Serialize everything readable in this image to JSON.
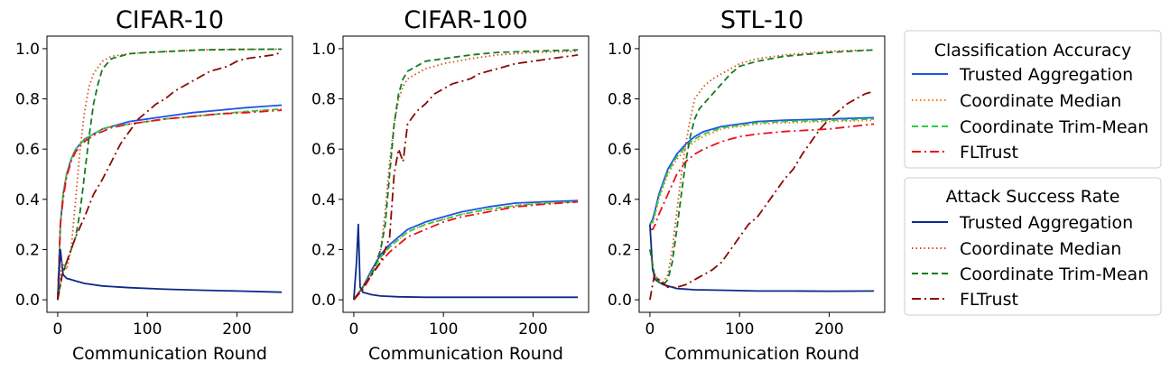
{
  "colors": {
    "acc_trusted": "#1f52e8",
    "acc_median": "#f07a10",
    "acc_trim": "#2ecc40",
    "acc_fltrust": "#e8101a",
    "asr_trusted": "#0c2a8a",
    "asr_median": "#d2541a",
    "asr_trim": "#127c20",
    "asr_fltrust": "#8b0a00"
  },
  "legend": {
    "acc_title": "Classification Accuracy",
    "asr_title": "Attack Success Rate",
    "acc_entries": [
      "Trusted Aggregation",
      "Coordinate Median",
      "Coordinate Trim-Mean",
      "FLTrust"
    ],
    "asr_entries": [
      "Trusted Aggregation",
      "Coordinate Median",
      "Coordinate Trim-Mean",
      "FLTrust"
    ],
    "placement": "right, outside plots"
  },
  "chart_data": [
    {
      "type": "line",
      "title": "CIFAR-10",
      "xlabel": "Communication Round",
      "ylabel": "",
      "xlim": [
        -12,
        262
      ],
      "ylim": [
        -0.05,
        1.05
      ],
      "xticks": [
        0,
        100,
        200
      ],
      "yticks": [
        "0.0",
        "0.2",
        "0.4",
        "0.6",
        "0.8",
        "1.0"
      ],
      "grid": false,
      "series": [
        {
          "key": "acc_trusted",
          "x": [
            0,
            3,
            6,
            10,
            15,
            20,
            30,
            40,
            50,
            60,
            80,
            100,
            120,
            150,
            180,
            210,
            230,
            250
          ],
          "y": [
            0.0,
            0.3,
            0.42,
            0.5,
            0.56,
            0.6,
            0.64,
            0.66,
            0.68,
            0.69,
            0.71,
            0.72,
            0.73,
            0.745,
            0.755,
            0.765,
            0.77,
            0.775
          ]
        },
        {
          "key": "acc_median",
          "x": [
            0,
            3,
            6,
            10,
            15,
            20,
            30,
            40,
            50,
            60,
            80,
            100,
            120,
            150,
            180,
            210,
            230,
            250
          ],
          "y": [
            0.0,
            0.3,
            0.42,
            0.5,
            0.56,
            0.6,
            0.64,
            0.66,
            0.68,
            0.69,
            0.7,
            0.71,
            0.72,
            0.73,
            0.74,
            0.75,
            0.755,
            0.76
          ]
        },
        {
          "key": "acc_trim",
          "x": [
            0,
            3,
            6,
            10,
            15,
            20,
            30,
            40,
            50,
            60,
            80,
            100,
            120,
            150,
            180,
            210,
            230,
            250
          ],
          "y": [
            0.0,
            0.3,
            0.42,
            0.5,
            0.56,
            0.6,
            0.64,
            0.66,
            0.68,
            0.69,
            0.7,
            0.71,
            0.72,
            0.73,
            0.74,
            0.75,
            0.755,
            0.76
          ]
        },
        {
          "key": "acc_fltrust",
          "x": [
            0,
            3,
            6,
            10,
            15,
            20,
            30,
            40,
            50,
            60,
            80,
            100,
            120,
            150,
            180,
            210,
            230,
            250
          ],
          "y": [
            0.0,
            0.3,
            0.4,
            0.49,
            0.55,
            0.59,
            0.63,
            0.655,
            0.67,
            0.685,
            0.7,
            0.71,
            0.72,
            0.73,
            0.74,
            0.745,
            0.75,
            0.755
          ]
        },
        {
          "key": "asr_trusted",
          "x": [
            0,
            3,
            6,
            10,
            15,
            20,
            30,
            50,
            80,
            120,
            160,
            200,
            250
          ],
          "y": [
            0.0,
            0.2,
            0.1,
            0.085,
            0.08,
            0.075,
            0.065,
            0.055,
            0.048,
            0.042,
            0.038,
            0.035,
            0.03
          ]
        },
        {
          "key": "asr_median",
          "x": [
            0,
            5,
            10,
            15,
            20,
            25,
            30,
            35,
            40,
            50,
            60,
            80,
            100,
            130,
            160,
            200,
            250
          ],
          "y": [
            0.0,
            0.15,
            0.12,
            0.2,
            0.4,
            0.6,
            0.75,
            0.85,
            0.9,
            0.95,
            0.97,
            0.98,
            0.985,
            0.99,
            0.995,
            0.997,
            0.998
          ]
        },
        {
          "key": "asr_trim",
          "x": [
            0,
            5,
            10,
            15,
            20,
            25,
            30,
            35,
            40,
            45,
            50,
            60,
            80,
            100,
            130,
            160,
            200,
            250
          ],
          "y": [
            0.0,
            0.1,
            0.15,
            0.2,
            0.25,
            0.35,
            0.5,
            0.65,
            0.78,
            0.86,
            0.92,
            0.96,
            0.98,
            0.985,
            0.99,
            0.995,
            0.997,
            0.998
          ]
        },
        {
          "key": "asr_fltrust",
          "x": [
            0,
            5,
            10,
            20,
            30,
            40,
            50,
            60,
            70,
            80,
            90,
            100,
            110,
            120,
            130,
            140,
            150,
            160,
            170,
            180,
            190,
            200,
            210,
            220,
            230,
            240,
            250
          ],
          "y": [
            0.0,
            0.1,
            0.15,
            0.25,
            0.33,
            0.42,
            0.48,
            0.55,
            0.62,
            0.67,
            0.72,
            0.75,
            0.78,
            0.8,
            0.83,
            0.85,
            0.87,
            0.89,
            0.91,
            0.92,
            0.93,
            0.95,
            0.96,
            0.965,
            0.97,
            0.975,
            0.985
          ]
        }
      ]
    },
    {
      "type": "line",
      "title": "CIFAR-100",
      "xlabel": "Communication Round",
      "ylabel": "",
      "xlim": [
        -12,
        262
      ],
      "ylim": [
        -0.05,
        1.05
      ],
      "xticks": [
        0,
        100,
        200
      ],
      "yticks": [
        "0.0",
        "0.2",
        "0.4",
        "0.6",
        "0.8",
        "1.0"
      ],
      "grid": false,
      "series": [
        {
          "key": "acc_trusted",
          "x": [
            0,
            10,
            20,
            30,
            40,
            50,
            60,
            80,
            100,
            120,
            150,
            180,
            210,
            250
          ],
          "y": [
            0.0,
            0.05,
            0.12,
            0.18,
            0.22,
            0.25,
            0.28,
            0.31,
            0.33,
            0.35,
            0.37,
            0.385,
            0.39,
            0.395
          ]
        },
        {
          "key": "acc_median",
          "x": [
            0,
            10,
            20,
            30,
            40,
            50,
            60,
            80,
            100,
            120,
            150,
            180,
            210,
            250
          ],
          "y": [
            0.0,
            0.05,
            0.11,
            0.17,
            0.21,
            0.24,
            0.27,
            0.3,
            0.32,
            0.34,
            0.36,
            0.375,
            0.385,
            0.39
          ]
        },
        {
          "key": "acc_trim",
          "x": [
            0,
            10,
            20,
            30,
            40,
            50,
            60,
            80,
            100,
            120,
            150,
            180,
            210,
            250
          ],
          "y": [
            0.0,
            0.05,
            0.11,
            0.17,
            0.21,
            0.24,
            0.27,
            0.3,
            0.32,
            0.34,
            0.36,
            0.375,
            0.385,
            0.39
          ]
        },
        {
          "key": "acc_fltrust",
          "x": [
            0,
            10,
            20,
            30,
            40,
            50,
            60,
            80,
            100,
            120,
            150,
            180,
            210,
            250
          ],
          "y": [
            0.0,
            0.04,
            0.1,
            0.15,
            0.19,
            0.22,
            0.25,
            0.28,
            0.31,
            0.33,
            0.35,
            0.37,
            0.38,
            0.39
          ]
        },
        {
          "key": "asr_trusted",
          "x": [
            0,
            3,
            5,
            7,
            10,
            15,
            20,
            30,
            50,
            80,
            120,
            160,
            200,
            250
          ],
          "y": [
            0.0,
            0.15,
            0.3,
            0.05,
            0.03,
            0.025,
            0.02,
            0.015,
            0.012,
            0.01,
            0.01,
            0.01,
            0.01,
            0.01
          ]
        },
        {
          "key": "asr_median",
          "x": [
            0,
            10,
            20,
            30,
            35,
            40,
            45,
            50,
            55,
            60,
            70,
            80,
            100,
            130,
            160,
            200,
            250
          ],
          "y": [
            0.0,
            0.05,
            0.1,
            0.2,
            0.35,
            0.55,
            0.7,
            0.8,
            0.85,
            0.88,
            0.9,
            0.92,
            0.94,
            0.96,
            0.975,
            0.985,
            0.99
          ]
        },
        {
          "key": "asr_trim",
          "x": [
            0,
            10,
            20,
            30,
            35,
            40,
            45,
            50,
            55,
            60,
            70,
            80,
            100,
            130,
            160,
            200,
            250
          ],
          "y": [
            0.0,
            0.05,
            0.1,
            0.2,
            0.3,
            0.5,
            0.7,
            0.82,
            0.88,
            0.91,
            0.93,
            0.95,
            0.96,
            0.975,
            0.985,
            0.99,
            0.995
          ]
        },
        {
          "key": "asr_fltrust",
          "x": [
            0,
            10,
            20,
            30,
            40,
            45,
            50,
            55,
            60,
            70,
            80,
            90,
            100,
            110,
            120,
            130,
            140,
            150,
            160,
            170,
            180,
            190,
            200,
            210,
            220,
            230,
            240,
            250
          ],
          "y": [
            0.0,
            0.05,
            0.1,
            0.15,
            0.25,
            0.5,
            0.6,
            0.55,
            0.7,
            0.75,
            0.78,
            0.82,
            0.84,
            0.86,
            0.87,
            0.88,
            0.9,
            0.91,
            0.92,
            0.93,
            0.94,
            0.945,
            0.95,
            0.955,
            0.96,
            0.965,
            0.97,
            0.975
          ]
        }
      ]
    },
    {
      "type": "line",
      "title": "STL-10",
      "xlabel": "Communication Round",
      "ylabel": "",
      "xlim": [
        -12,
        262
      ],
      "ylim": [
        -0.05,
        1.05
      ],
      "xticks": [
        0,
        100,
        200
      ],
      "yticks": [
        "0.0",
        "0.2",
        "0.4",
        "0.6",
        "0.8",
        "1.0"
      ],
      "grid": false,
      "series": [
        {
          "key": "acc_trusted",
          "x": [
            0,
            3,
            6,
            10,
            15,
            20,
            30,
            40,
            50,
            60,
            80,
            100,
            120,
            150,
            200,
            250
          ],
          "y": [
            0.3,
            0.32,
            0.36,
            0.42,
            0.47,
            0.52,
            0.58,
            0.62,
            0.65,
            0.67,
            0.69,
            0.7,
            0.71,
            0.715,
            0.72,
            0.725
          ]
        },
        {
          "key": "acc_median",
          "x": [
            0,
            3,
            6,
            10,
            15,
            20,
            30,
            40,
            50,
            60,
            80,
            100,
            120,
            150,
            200,
            250
          ],
          "y": [
            0.3,
            0.3,
            0.34,
            0.4,
            0.45,
            0.5,
            0.56,
            0.6,
            0.63,
            0.65,
            0.68,
            0.69,
            0.7,
            0.705,
            0.71,
            0.715
          ]
        },
        {
          "key": "acc_trim",
          "x": [
            0,
            3,
            6,
            10,
            15,
            20,
            30,
            40,
            50,
            60,
            80,
            100,
            120,
            150,
            200,
            250
          ],
          "y": [
            0.3,
            0.31,
            0.35,
            0.41,
            0.46,
            0.51,
            0.57,
            0.61,
            0.64,
            0.66,
            0.685,
            0.695,
            0.705,
            0.71,
            0.715,
            0.72
          ]
        },
        {
          "key": "acc_fltrust",
          "x": [
            0,
            3,
            6,
            10,
            15,
            20,
            30,
            40,
            50,
            60,
            80,
            100,
            120,
            150,
            200,
            250
          ],
          "y": [
            0.28,
            0.28,
            0.3,
            0.34,
            0.38,
            0.42,
            0.5,
            0.55,
            0.58,
            0.6,
            0.63,
            0.65,
            0.66,
            0.67,
            0.68,
            0.7
          ]
        },
        {
          "key": "asr_trusted",
          "x": [
            0,
            3,
            6,
            10,
            15,
            20,
            30,
            50,
            80,
            120,
            160,
            200,
            250
          ],
          "y": [
            0.3,
            0.12,
            0.08,
            0.07,
            0.06,
            0.055,
            0.045,
            0.04,
            0.038,
            0.035,
            0.035,
            0.034,
            0.035
          ]
        },
        {
          "key": "asr_median",
          "x": [
            0,
            5,
            10,
            15,
            20,
            25,
            30,
            35,
            40,
            45,
            50,
            60,
            70,
            80,
            90,
            100,
            120,
            150,
            200,
            250
          ],
          "y": [
            0.2,
            0.1,
            0.08,
            0.07,
            0.1,
            0.2,
            0.35,
            0.5,
            0.62,
            0.72,
            0.8,
            0.85,
            0.88,
            0.9,
            0.92,
            0.94,
            0.96,
            0.975,
            0.99,
            0.995
          ]
        },
        {
          "key": "asr_trim",
          "x": [
            0,
            5,
            10,
            15,
            20,
            25,
            30,
            35,
            40,
            45,
            50,
            55,
            60,
            70,
            80,
            90,
            100,
            120,
            150,
            200,
            250
          ],
          "y": [
            0.2,
            0.1,
            0.07,
            0.06,
            0.08,
            0.15,
            0.28,
            0.42,
            0.55,
            0.65,
            0.72,
            0.76,
            0.78,
            0.82,
            0.86,
            0.9,
            0.93,
            0.95,
            0.97,
            0.985,
            0.995
          ]
        },
        {
          "key": "asr_fltrust",
          "x": [
            0,
            5,
            10,
            20,
            30,
            40,
            50,
            60,
            70,
            80,
            90,
            100,
            110,
            120,
            130,
            140,
            150,
            160,
            170,
            180,
            190,
            200,
            210,
            220,
            230,
            240,
            250
          ],
          "y": [
            0.0,
            0.1,
            0.08,
            0.05,
            0.05,
            0.06,
            0.08,
            0.1,
            0.12,
            0.15,
            0.2,
            0.25,
            0.3,
            0.33,
            0.38,
            0.43,
            0.48,
            0.52,
            0.58,
            0.63,
            0.68,
            0.72,
            0.75,
            0.78,
            0.8,
            0.82,
            0.83
          ]
        }
      ]
    }
  ]
}
